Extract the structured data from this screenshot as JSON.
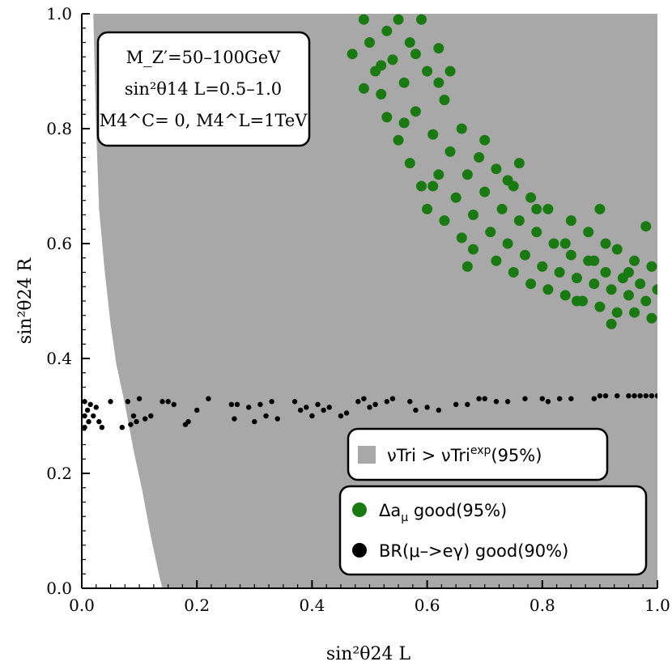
{
  "chart_data": {
    "type": "scatter",
    "title": "",
    "xlabel": "sin²θ24 L",
    "ylabel": "sin²θ24 R",
    "xlim": [
      0.0,
      1.0
    ],
    "ylim": [
      0.0,
      1.0
    ],
    "x_ticks": [
      "0.0",
      "0.2",
      "0.4",
      "0.6",
      "0.8",
      "1.0"
    ],
    "y_ticks": [
      "0.0",
      "0.2",
      "0.4",
      "0.6",
      "0.8",
      "1.0"
    ],
    "annotation": {
      "line1": "M_Z′=50–100GeV",
      "line2": "sin²θ14 L=0.5–1.0",
      "line3": "M4^C= 0, M4^L=1TeV"
    },
    "excluded_region": {
      "name": "νTri > νTri^exp(95%)",
      "color": "#a8a8a8",
      "boundary": [
        [
          0.02,
          1.0
        ],
        [
          0.025,
          0.8
        ],
        [
          0.03,
          0.66
        ],
        [
          0.04,
          0.55
        ],
        [
          0.05,
          0.46
        ],
        [
          0.06,
          0.39
        ],
        [
          0.075,
          0.32
        ],
        [
          0.09,
          0.24
        ],
        [
          0.105,
          0.17
        ],
        [
          0.12,
          0.09
        ],
        [
          0.135,
          0.02
        ],
        [
          0.14,
          0.0
        ]
      ]
    },
    "series": [
      {
        "name": "Δaμ good(95%)",
        "color": "#1a7a12",
        "points": [
          [
            0.49,
            0.99
          ],
          [
            0.5,
            0.95
          ],
          [
            0.51,
            0.9
          ],
          [
            0.52,
            0.86
          ],
          [
            0.53,
            0.97
          ],
          [
            0.53,
            0.82
          ],
          [
            0.54,
            0.92
          ],
          [
            0.55,
            0.99
          ],
          [
            0.55,
            0.78
          ],
          [
            0.56,
            0.88
          ],
          [
            0.57,
            0.95
          ],
          [
            0.57,
            0.74
          ],
          [
            0.58,
            0.83
          ],
          [
            0.59,
            0.99
          ],
          [
            0.59,
            0.7
          ],
          [
            0.6,
            0.9
          ],
          [
            0.6,
            0.66
          ],
          [
            0.61,
            0.79
          ],
          [
            0.62,
            0.72
          ],
          [
            0.62,
            0.94
          ],
          [
            0.63,
            0.85
          ],
          [
            0.63,
            0.64
          ],
          [
            0.64,
            0.76
          ],
          [
            0.65,
            0.68
          ],
          [
            0.66,
            0.61
          ],
          [
            0.66,
            0.8
          ],
          [
            0.67,
            0.72
          ],
          [
            0.68,
            0.65
          ],
          [
            0.68,
            0.59
          ],
          [
            0.69,
            0.75
          ],
          [
            0.7,
            0.69
          ],
          [
            0.71,
            0.62
          ],
          [
            0.72,
            0.57
          ],
          [
            0.72,
            0.73
          ],
          [
            0.73,
            0.66
          ],
          [
            0.74,
            0.6
          ],
          [
            0.75,
            0.55
          ],
          [
            0.75,
            0.7
          ],
          [
            0.76,
            0.64
          ],
          [
            0.77,
            0.58
          ],
          [
            0.78,
            0.53
          ],
          [
            0.78,
            0.68
          ],
          [
            0.79,
            0.62
          ],
          [
            0.8,
            0.56
          ],
          [
            0.81,
            0.52
          ],
          [
            0.81,
            0.66
          ],
          [
            0.82,
            0.6
          ],
          [
            0.83,
            0.55
          ],
          [
            0.84,
            0.51
          ],
          [
            0.85,
            0.64
          ],
          [
            0.85,
            0.58
          ],
          [
            0.86,
            0.54
          ],
          [
            0.87,
            0.5
          ],
          [
            0.88,
            0.62
          ],
          [
            0.88,
            0.57
          ],
          [
            0.89,
            0.53
          ],
          [
            0.9,
            0.49
          ],
          [
            0.91,
            0.6
          ],
          [
            0.91,
            0.55
          ],
          [
            0.92,
            0.52
          ],
          [
            0.93,
            0.48
          ],
          [
            0.93,
            0.59
          ],
          [
            0.94,
            0.54
          ],
          [
            0.95,
            0.51
          ],
          [
            0.96,
            0.48
          ],
          [
            0.96,
            0.57
          ],
          [
            0.97,
            0.53
          ],
          [
            0.98,
            0.5
          ],
          [
            0.99,
            0.47
          ],
          [
            0.99,
            0.56
          ],
          [
            1.0,
            0.52
          ],
          [
            0.64,
            0.9
          ],
          [
            0.58,
            0.93
          ],
          [
            0.52,
            0.91
          ],
          [
            0.56,
            0.81
          ],
          [
            0.7,
            0.78
          ],
          [
            0.74,
            0.71
          ],
          [
            0.79,
            0.66
          ],
          [
            0.84,
            0.6
          ],
          [
            0.89,
            0.57
          ],
          [
            0.95,
            0.55
          ],
          [
            0.86,
            0.5
          ],
          [
            0.92,
            0.46
          ],
          [
            0.67,
            0.56
          ],
          [
            0.62,
            0.88
          ],
          [
            0.47,
            0.93
          ],
          [
            0.49,
            0.87
          ],
          [
            0.61,
            0.7
          ],
          [
            0.76,
            0.74
          ],
          [
            0.98,
            0.63
          ],
          [
            0.9,
            0.66
          ]
        ]
      },
      {
        "name": "BR(μ–>eγ) good(90%)",
        "color": "#000000",
        "points": [
          [
            0.005,
            0.325
          ],
          [
            0.005,
            0.3
          ],
          [
            0.005,
            0.28
          ],
          [
            0.01,
            0.31
          ],
          [
            0.012,
            0.29
          ],
          [
            0.015,
            0.32
          ],
          [
            0.02,
            0.3
          ],
          [
            0.025,
            0.315
          ],
          [
            0.03,
            0.29
          ],
          [
            0.035,
            0.28
          ],
          [
            0.05,
            0.325
          ],
          [
            0.07,
            0.28
          ],
          [
            0.08,
            0.325
          ],
          [
            0.085,
            0.285
          ],
          [
            0.09,
            0.3
          ],
          [
            0.095,
            0.29
          ],
          [
            0.1,
            0.33
          ],
          [
            0.11,
            0.295
          ],
          [
            0.12,
            0.3
          ],
          [
            0.14,
            0.325
          ],
          [
            0.15,
            0.325
          ],
          [
            0.16,
            0.32
          ],
          [
            0.18,
            0.285
          ],
          [
            0.185,
            0.29
          ],
          [
            0.2,
            0.31
          ],
          [
            0.22,
            0.33
          ],
          [
            0.26,
            0.32
          ],
          [
            0.265,
            0.295
          ],
          [
            0.27,
            0.32
          ],
          [
            0.29,
            0.315
          ],
          [
            0.3,
            0.29
          ],
          [
            0.31,
            0.32
          ],
          [
            0.32,
            0.3
          ],
          [
            0.33,
            0.325
          ],
          [
            0.34,
            0.295
          ],
          [
            0.37,
            0.325
          ],
          [
            0.38,
            0.31
          ],
          [
            0.39,
            0.315
          ],
          [
            0.4,
            0.3
          ],
          [
            0.41,
            0.32
          ],
          [
            0.42,
            0.31
          ],
          [
            0.43,
            0.315
          ],
          [
            0.45,
            0.3
          ],
          [
            0.46,
            0.305
          ],
          [
            0.48,
            0.325
          ],
          [
            0.49,
            0.33
          ],
          [
            0.5,
            0.315
          ],
          [
            0.51,
            0.32
          ],
          [
            0.53,
            0.325
          ],
          [
            0.54,
            0.33
          ],
          [
            0.57,
            0.325
          ],
          [
            0.58,
            0.31
          ],
          [
            0.6,
            0.315
          ],
          [
            0.62,
            0.31
          ],
          [
            0.65,
            0.32
          ],
          [
            0.67,
            0.32
          ],
          [
            0.69,
            0.33
          ],
          [
            0.7,
            0.33
          ],
          [
            0.72,
            0.325
          ],
          [
            0.74,
            0.325
          ],
          [
            0.77,
            0.33
          ],
          [
            0.8,
            0.33
          ],
          [
            0.81,
            0.325
          ],
          [
            0.83,
            0.33
          ],
          [
            0.85,
            0.33
          ],
          [
            0.89,
            0.33
          ],
          [
            0.9,
            0.335
          ],
          [
            0.91,
            0.335
          ],
          [
            0.93,
            0.335
          ],
          [
            0.95,
            0.335
          ],
          [
            0.96,
            0.335
          ],
          [
            0.97,
            0.335
          ],
          [
            0.98,
            0.335
          ],
          [
            0.99,
            0.335
          ],
          [
            1.0,
            0.335
          ]
        ]
      }
    ],
    "legend": {
      "region_label": "νTri > νTri",
      "region_sup": "exp",
      "region_tail": "(95%)",
      "green_label": "Δa",
      "green_sub": "μ",
      "green_tail": " good(95%)",
      "black_label": "BR(μ–>eγ) good(90%)"
    }
  }
}
